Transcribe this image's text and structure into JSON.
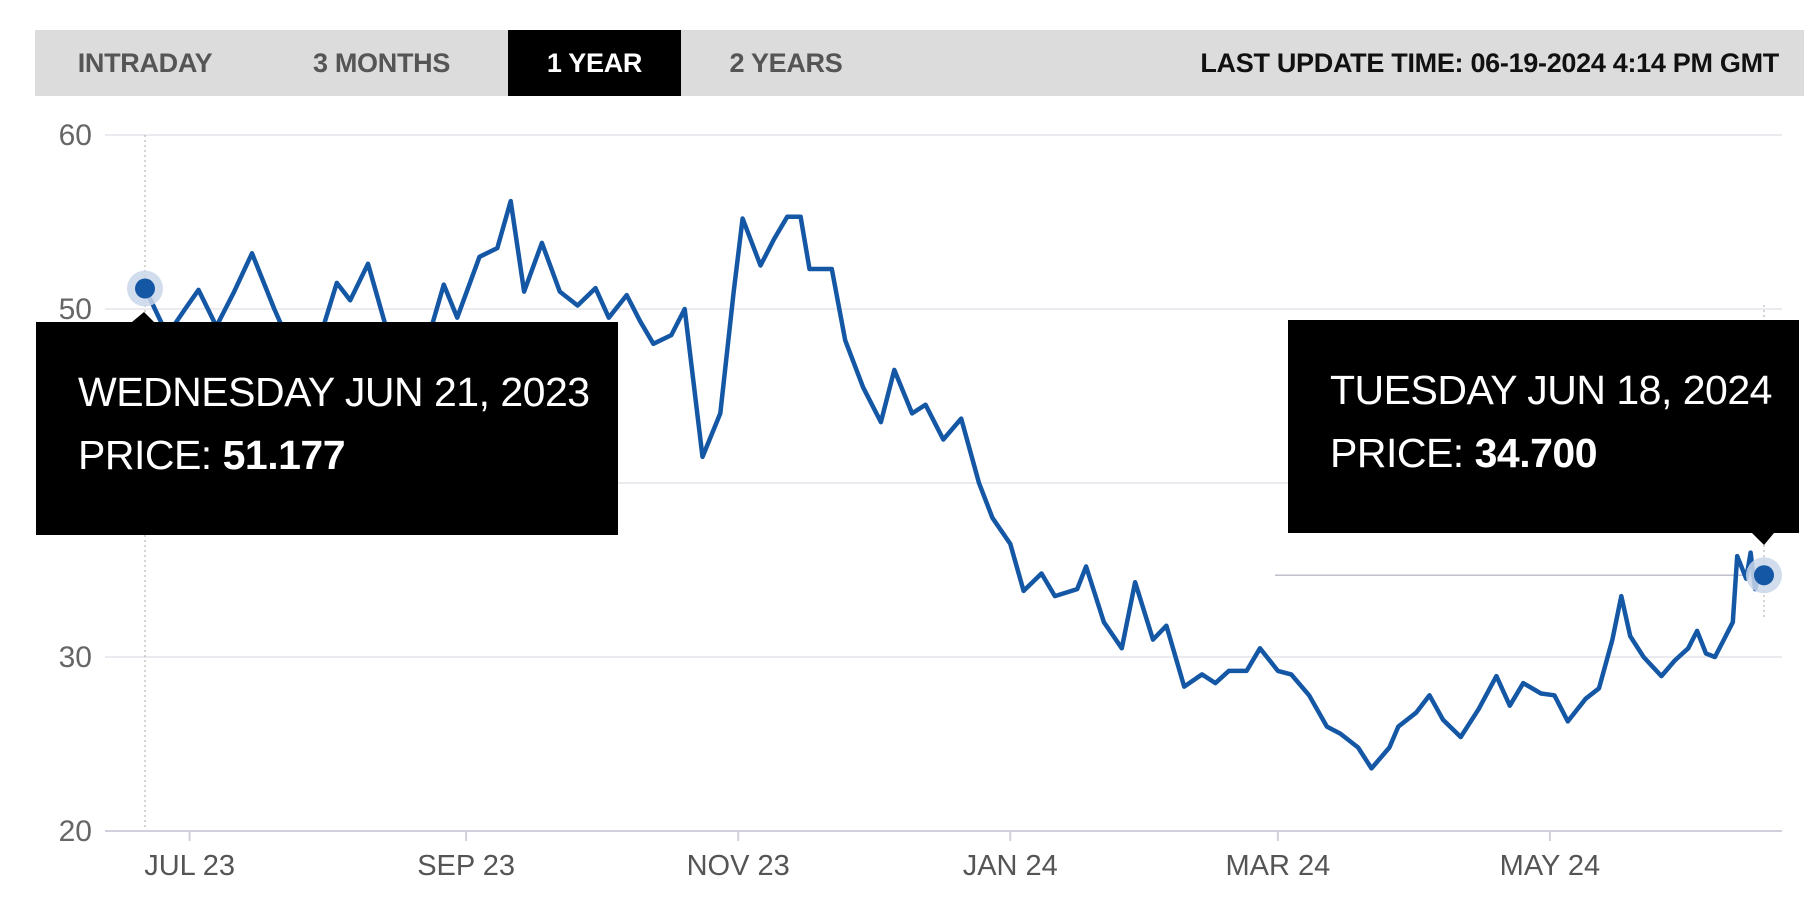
{
  "tabs": [
    {
      "label": "INTRADAY",
      "active": false
    },
    {
      "label": "3 MONTHS",
      "active": false
    },
    {
      "label": "1 YEAR",
      "active": true
    },
    {
      "label": "2 YEARS",
      "active": false
    }
  ],
  "last_update": "LAST UPDATE TIME: 06-19-2024 4:14 PM GMT",
  "tooltips": [
    {
      "date": "WEDNESDAY JUN 21, 2023",
      "price_label": "PRICE:",
      "price_value": "51.177"
    },
    {
      "date": "TUESDAY JUN 18, 2024",
      "price_label": "PRICE:",
      "price_value": "34.700"
    }
  ],
  "colors": {
    "line": "#1457a5",
    "grid": "#e3e3ea",
    "tab_bg": "#dcdcdc",
    "tab_active": "#000000",
    "tooltip_bg": "#000000"
  },
  "chart_data": {
    "type": "line",
    "title": "",
    "xlabel": "",
    "ylabel": "",
    "ylim": [
      20,
      60
    ],
    "yticks": [
      20,
      30,
      40,
      50,
      60
    ],
    "ytick_labels": [
      "20",
      "30",
      "",
      "50",
      "60"
    ],
    "xlim": [
      "2023-06-21",
      "2024-06-18"
    ],
    "xticks": [
      {
        "date": "2023-07-01",
        "label": "JUL 23"
      },
      {
        "date": "2023-09-01",
        "label": "SEP 23"
      },
      {
        "date": "2023-11-01",
        "label": "NOV 23"
      },
      {
        "date": "2024-01-01",
        "label": "JAN 24"
      },
      {
        "date": "2024-03-01",
        "label": "MAR 24"
      },
      {
        "date": "2024-05-01",
        "label": "MAY 24"
      }
    ],
    "grid": true,
    "series": [
      {
        "points": [
          [
            "2023-06-21",
            51.2
          ],
          [
            "2023-06-26",
            48.5
          ],
          [
            "2023-06-30",
            50.0
          ],
          [
            "2023-07-03",
            51.1
          ],
          [
            "2023-07-07",
            49.0
          ],
          [
            "2023-07-11",
            51.0
          ],
          [
            "2023-07-15",
            53.2
          ],
          [
            "2023-07-20",
            50.0
          ],
          [
            "2023-07-26",
            46.5
          ],
          [
            "2023-07-31",
            49.0
          ],
          [
            "2023-08-03",
            51.5
          ],
          [
            "2023-08-06",
            50.5
          ],
          [
            "2023-08-10",
            52.6
          ],
          [
            "2023-08-14",
            49.0
          ],
          [
            "2023-08-18",
            48.5
          ],
          [
            "2023-08-22",
            47.0
          ],
          [
            "2023-08-27",
            51.4
          ],
          [
            "2023-08-30",
            49.5
          ],
          [
            "2023-09-04",
            53.0
          ],
          [
            "2023-09-08",
            53.5
          ],
          [
            "2023-09-11",
            56.2
          ],
          [
            "2023-09-14",
            51.0
          ],
          [
            "2023-09-18",
            53.8
          ],
          [
            "2023-09-22",
            51.0
          ],
          [
            "2023-09-26",
            50.2
          ],
          [
            "2023-09-30",
            51.2
          ],
          [
            "2023-10-03",
            49.5
          ],
          [
            "2023-10-07",
            50.8
          ],
          [
            "2023-10-10",
            49.3
          ],
          [
            "2023-10-13",
            48.0
          ],
          [
            "2023-10-17",
            48.5
          ],
          [
            "2023-10-20",
            50.0
          ],
          [
            "2023-10-24",
            41.5
          ],
          [
            "2023-10-28",
            44.0
          ],
          [
            "2023-10-31",
            51.0
          ],
          [
            "2023-11-02",
            55.2
          ],
          [
            "2023-11-06",
            52.5
          ],
          [
            "2023-11-09",
            54.0
          ],
          [
            "2023-11-12",
            55.3
          ],
          [
            "2023-11-15",
            55.3
          ],
          [
            "2023-11-17",
            52.3
          ],
          [
            "2023-11-22",
            52.3
          ],
          [
            "2023-11-25",
            48.2
          ],
          [
            "2023-11-29",
            45.5
          ],
          [
            "2023-12-03",
            43.5
          ],
          [
            "2023-12-06",
            46.5
          ],
          [
            "2023-12-10",
            44.0
          ],
          [
            "2023-12-13",
            44.5
          ],
          [
            "2023-12-17",
            42.5
          ],
          [
            "2023-12-21",
            43.7
          ],
          [
            "2023-12-25",
            40.0
          ],
          [
            "2023-12-28",
            38.0
          ],
          [
            "2024-01-01",
            36.5
          ],
          [
            "2024-01-04",
            33.8
          ],
          [
            "2024-01-08",
            34.8
          ],
          [
            "2024-01-11",
            33.5
          ],
          [
            "2024-01-16",
            33.9
          ],
          [
            "2024-01-18",
            35.2
          ],
          [
            "2024-01-22",
            32.0
          ],
          [
            "2024-01-26",
            30.5
          ],
          [
            "2024-01-29",
            34.3
          ],
          [
            "2024-02-02",
            31.0
          ],
          [
            "2024-02-05",
            31.8
          ],
          [
            "2024-02-09",
            28.3
          ],
          [
            "2024-02-13",
            29.0
          ],
          [
            "2024-02-16",
            28.5
          ],
          [
            "2024-02-19",
            29.2
          ],
          [
            "2024-02-23",
            29.2
          ],
          [
            "2024-02-26",
            30.5
          ],
          [
            "2024-03-01",
            29.2
          ],
          [
            "2024-03-04",
            29.0
          ],
          [
            "2024-03-08",
            27.8
          ],
          [
            "2024-03-12",
            26.0
          ],
          [
            "2024-03-15",
            25.6
          ],
          [
            "2024-03-19",
            24.8
          ],
          [
            "2024-03-22",
            23.6
          ],
          [
            "2024-03-26",
            24.8
          ],
          [
            "2024-03-28",
            26.0
          ],
          [
            "2024-04-01",
            26.8
          ],
          [
            "2024-04-04",
            27.8
          ],
          [
            "2024-04-07",
            26.4
          ],
          [
            "2024-04-11",
            25.4
          ],
          [
            "2024-04-15",
            27.0
          ],
          [
            "2024-04-19",
            28.9
          ],
          [
            "2024-04-22",
            27.2
          ],
          [
            "2024-04-25",
            28.5
          ],
          [
            "2024-04-29",
            27.9
          ],
          [
            "2024-05-02",
            27.8
          ],
          [
            "2024-05-05",
            26.3
          ],
          [
            "2024-05-09",
            27.6
          ],
          [
            "2024-05-12",
            28.2
          ],
          [
            "2024-05-15",
            31.0
          ],
          [
            "2024-05-17",
            33.5
          ],
          [
            "2024-05-19",
            31.2
          ],
          [
            "2024-05-22",
            30.0
          ],
          [
            "2024-05-26",
            28.9
          ],
          [
            "2024-05-29",
            29.8
          ],
          [
            "2024-06-01",
            30.5
          ],
          [
            "2024-06-03",
            31.5
          ],
          [
            "2024-06-05",
            30.2
          ],
          [
            "2024-06-07",
            30.0
          ],
          [
            "2024-06-09",
            31.0
          ],
          [
            "2024-06-11",
            32.0
          ],
          [
            "2024-06-12",
            35.8
          ],
          [
            "2024-06-14",
            34.5
          ],
          [
            "2024-06-15",
            36.0
          ],
          [
            "2024-06-16",
            33.9
          ],
          [
            "2024-06-17",
            34.8
          ],
          [
            "2024-06-18",
            34.7
          ]
        ]
      }
    ],
    "highlighted_points": [
      {
        "x": "2023-06-21",
        "y": 51.177
      },
      {
        "x": "2024-06-18",
        "y": 34.7
      }
    ]
  }
}
